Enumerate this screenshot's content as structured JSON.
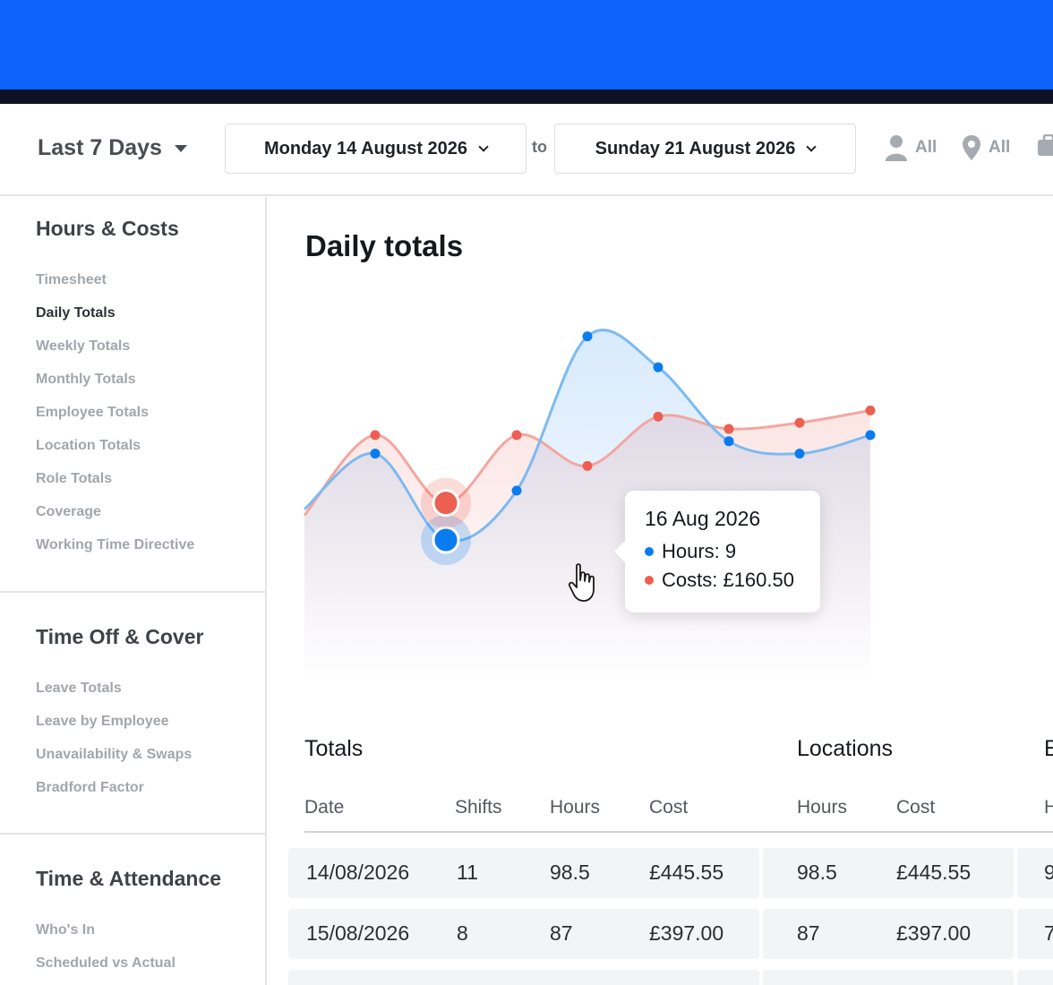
{
  "filters": {
    "range_label": "Last 7 Days",
    "start_date": "Monday 14 August 2026",
    "to_label": "to",
    "end_date": "Sunday 21 August 2026",
    "employees_label": "All",
    "locations_label": "All"
  },
  "sidebar": {
    "sections": [
      {
        "title": "Hours & Costs",
        "items": [
          "Timesheet",
          "Daily Totals",
          "Weekly Totals",
          "Monthly Totals",
          "Employee Totals",
          "Location Totals",
          "Role Totals",
          "Coverage",
          "Working Time Directive"
        ],
        "active": "Daily Totals"
      },
      {
        "title": "Time Off & Cover",
        "items": [
          "Leave Totals",
          "Leave by Employee",
          "Unavailability & Swaps",
          "Bradford Factor"
        ]
      },
      {
        "title": "Time & Attendance",
        "items": [
          "Who's In",
          "Scheduled vs Actual"
        ]
      }
    ]
  },
  "main": {
    "title": "Daily totals"
  },
  "tooltip": {
    "date": "16 Aug 2026",
    "hours": "Hours: 9",
    "costs": "Costs: £160.50"
  },
  "colors": {
    "brand": "#0b63fb",
    "hours_series": "#0a7cf0",
    "costs_series": "#ec5f52"
  },
  "table": {
    "groups": [
      "Totals",
      "Locations",
      "E"
    ],
    "columns": [
      "Date",
      "Shifts",
      "Hours",
      "Cost",
      "Hours",
      "Cost",
      "H"
    ],
    "rows": [
      {
        "date": "14/08/2026",
        "shifts": "11",
        "hours": "98.5",
        "cost": "£445.55",
        "loc_hours": "98.5",
        "loc_cost": "£445.55",
        "extra": "9"
      },
      {
        "date": "15/08/2026",
        "shifts": "8",
        "hours": "87",
        "cost": "£397.00",
        "loc_hours": "87",
        "loc_cost": "£397.00",
        "extra": "7"
      },
      {
        "date": "",
        "shifts": "",
        "hours": "",
        "cost": "",
        "loc_hours": "",
        "loc_cost": "",
        "extra": ""
      }
    ]
  },
  "chart_data": {
    "type": "line",
    "title": "Daily totals",
    "series": [
      {
        "name": "Hours",
        "color": "#0a7cf0",
        "values": [
          14,
          23,
          9,
          17,
          42,
          37,
          25,
          23,
          26
        ]
      },
      {
        "name": "Costs",
        "color": "#ec5f52",
        "values": [
          13,
          26,
          15,
          26,
          21,
          29,
          27,
          28,
          30
        ]
      }
    ],
    "grid": false,
    "legend": "none"
  }
}
